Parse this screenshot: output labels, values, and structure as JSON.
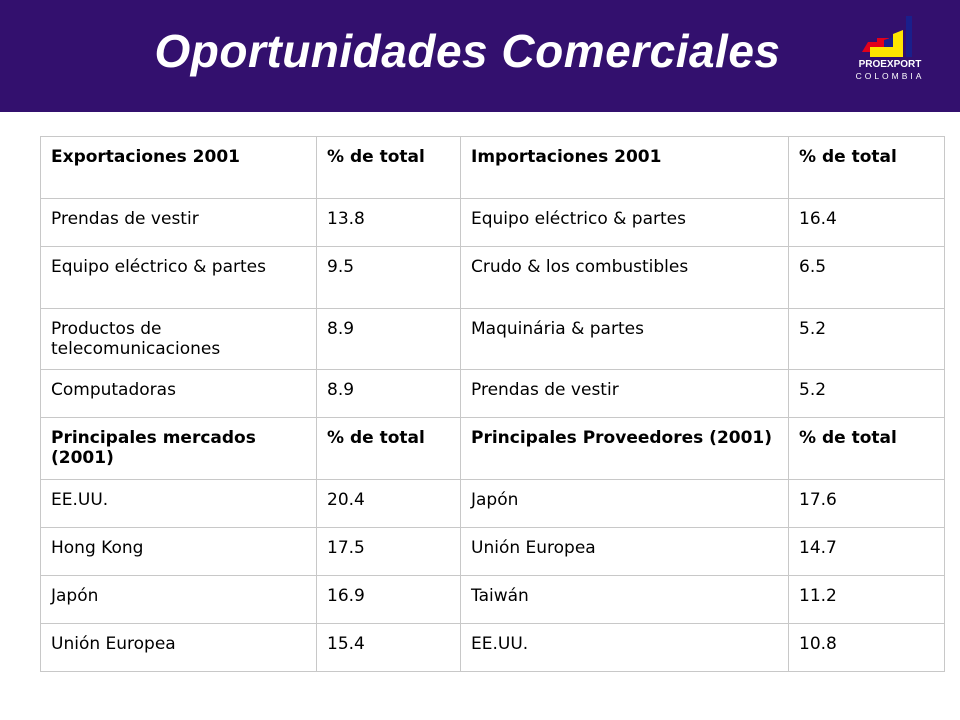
{
  "header": {
    "title": "Oportunidades Comerciales",
    "logo_name": "PROEXPORT",
    "logo_sub": "COLOMBIA",
    "background_color": "#33106e"
  },
  "table": {
    "sections": [
      {
        "header": [
          "Exportaciones 2001",
          "% de total",
          "Importaciones 2001",
          "% de total"
        ],
        "rows": [
          [
            "Prendas de vestir",
            "13.8",
            "Equipo eléctrico & partes",
            "16.4"
          ],
          [
            "Equipo eléctrico & partes",
            "9.5",
            "Crudo & los combustibles",
            "6.5"
          ],
          [
            "Productos de telecomunicaciones",
            "8.9",
            "Maquinária & partes",
            "5.2"
          ],
          [
            "Computadoras",
            "8.9",
            "Prendas de vestir",
            "5.2"
          ]
        ]
      },
      {
        "header": [
          "Principales mercados (2001)",
          "% de total",
          "Principales Proveedores (2001)",
          "% de total"
        ],
        "rows": [
          [
            "EE.UU.",
            "20.4",
            "Japón",
            "17.6"
          ],
          [
            "Hong Kong",
            "17.5",
            "Unión Europea",
            "14.7"
          ],
          [
            "Japón",
            "16.9",
            "Taiwán",
            "11.2"
          ],
          [
            "Unión Europea",
            "15.4",
            "EE.UU.",
            "10.8"
          ]
        ]
      }
    ]
  }
}
